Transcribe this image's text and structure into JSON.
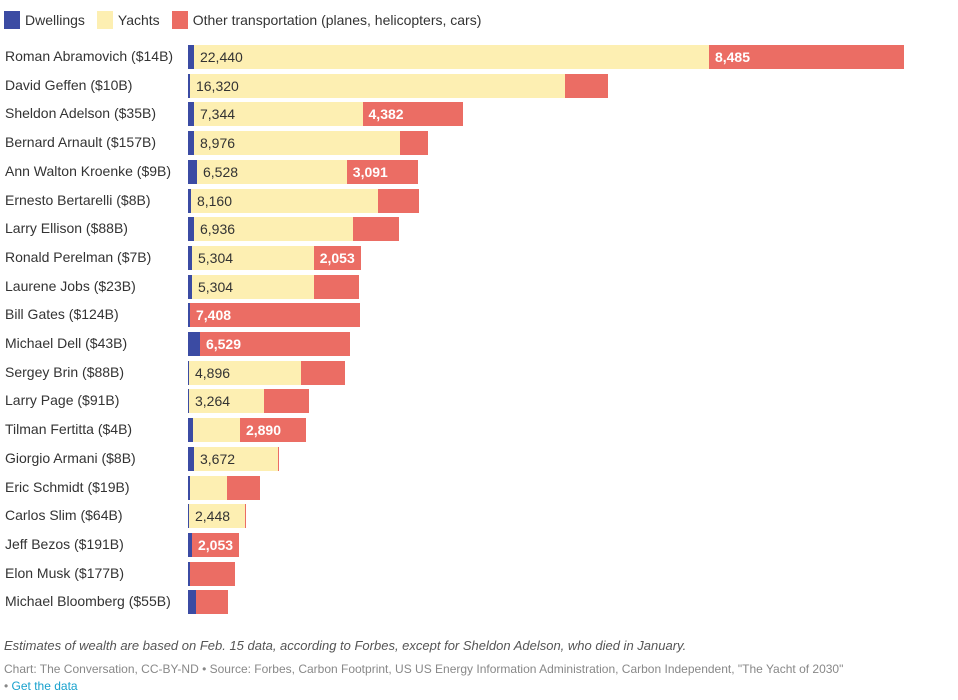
{
  "chart_data": {
    "type": "bar",
    "orientation": "horizontal",
    "stacked": true,
    "title": "",
    "xlabel": "",
    "ylabel": "",
    "grid": false,
    "legend_position": "top-left",
    "categories": [
      "Roman Abramovich ($14B)",
      "David Geffen ($10B)",
      "Sheldon Adelson ($35B)",
      "Bernard Arnault ($157B)",
      "Ann Walton Kroenke ($9B)",
      "Ernesto Bertarelli ($8B)",
      "Larry Ellison ($88B)",
      "Ronald Perelman ($7B)",
      "Laurene Jobs ($23B)",
      "Bill Gates ($124B)",
      "Michael Dell ($43B)",
      "Sergey Brin ($88B)",
      "Larry Page ($91B)",
      "Tilman Fertitta ($4B)",
      "Giorgio Armani ($8B)",
      "Eric Schmidt ($19B)",
      "Carlos Slim ($64B)",
      "Jeff Bezos ($191B)",
      "Elon Musk ($177B)",
      "Michael Bloomberg ($55B)"
    ],
    "series": [
      {
        "name": "Dwellings",
        "color": "#3b4ba3",
        "values": [
          261,
          87,
          261,
          261,
          392,
          130,
          261,
          174,
          174,
          87,
          522,
          44,
          44,
          218,
          261,
          87,
          44,
          174,
          87,
          348
        ],
        "labels": [
          "",
          "",
          "",
          "",
          "",
          "",
          "",
          "",
          "",
          "",
          "",
          "",
          "",
          "",
          "",
          "",
          "",
          "",
          "",
          ""
        ]
      },
      {
        "name": "Yachts",
        "color": "#fdefb2",
        "values": [
          22440,
          16320,
          7344,
          8976,
          6528,
          8160,
          6936,
          5304,
          5304,
          0,
          0,
          4896,
          3264,
          2047,
          3672,
          1610,
          2448,
          0,
          0,
          0
        ],
        "labels": [
          "22,440",
          "16,320",
          "7,344",
          "8,976",
          "6,528",
          "8,160",
          "6,936",
          "5,304",
          "5,304",
          "",
          "",
          "4,896",
          "3,264",
          "",
          "3,672",
          "",
          "2,448",
          "",
          "",
          ""
        ]
      },
      {
        "name": "Other transportation (planes, helicopters, cars)",
        "color": "#eb6d64",
        "values": [
          8485,
          1916,
          4382,
          1219,
          3091,
          1785,
          2003,
          2053,
          1960,
          7408,
          6529,
          1916,
          1960,
          2890,
          44,
          1437,
          44,
          2053,
          1960,
          1393
        ],
        "labels": [
          "8,485",
          "",
          "4,382",
          "",
          "3,091",
          "",
          "",
          "2,053",
          "",
          "7,408",
          "6,529",
          "",
          "",
          "2,890",
          "",
          "",
          "",
          "2,053",
          "",
          ""
        ]
      }
    ],
    "xlim": [
      0,
      31200
    ]
  },
  "footer": {
    "note": "Estimates of wealth are based on Feb. 15 data, according to Forbes, except for Sheldon Adelson, who died in January.",
    "source": "Chart: The Conversation, CC-BY-ND • Source: Forbes, Carbon Footprint, US US Energy Information Administration, Carbon Independent, \"The Yacht of 2030\"",
    "separator": "•",
    "get_data_link": "Get the data"
  }
}
